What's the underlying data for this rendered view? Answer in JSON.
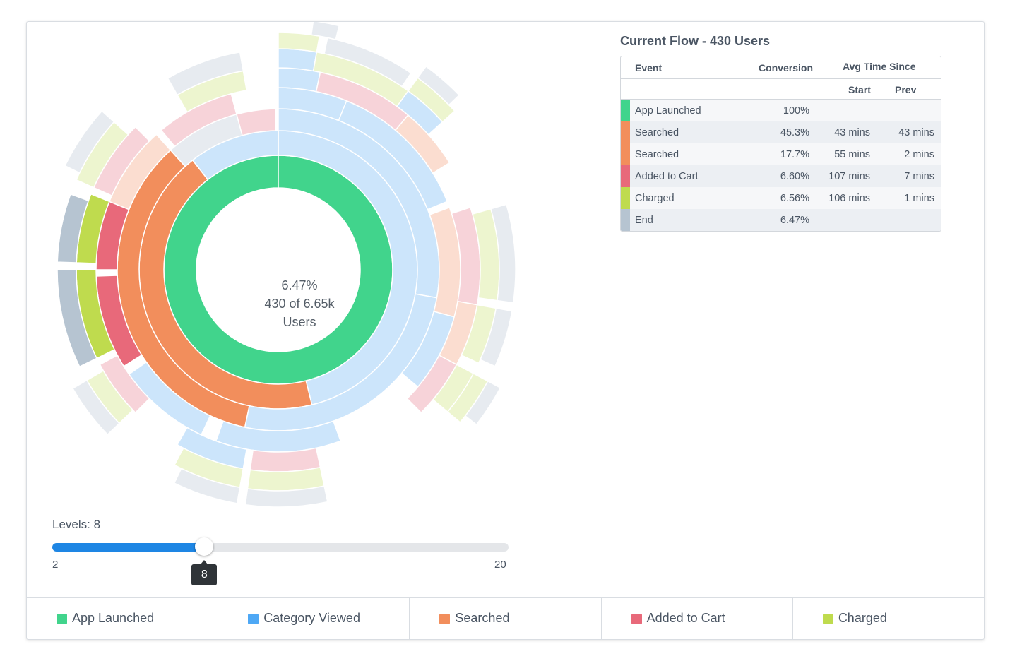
{
  "center": {
    "percent": "6.47%",
    "count_line": "430 of 6.65k",
    "unit": "Users"
  },
  "flow": {
    "title": "Current Flow - 430 Users",
    "headers": {
      "event": "Event",
      "conversion": "Conversion",
      "avg_time_since": "Avg Time Since",
      "start": "Start",
      "prev": "Prev"
    },
    "rows": [
      {
        "event": "App Launched",
        "conversion": "100%",
        "start": "",
        "prev": "",
        "color": "#41d48c"
      },
      {
        "event": "Searched",
        "conversion": "45.3%",
        "start": "43 mins",
        "prev": "43 mins",
        "color": "#f28e5c"
      },
      {
        "event": "Searched",
        "conversion": "17.7%",
        "start": "55 mins",
        "prev": "2 mins",
        "color": "#f28e5c"
      },
      {
        "event": "Added to Cart",
        "conversion": "6.60%",
        "start": "107 mins",
        "prev": "7 mins",
        "color": "#e8697a"
      },
      {
        "event": "Charged",
        "conversion": "6.56%",
        "start": "106 mins",
        "prev": "1 mins",
        "color": "#bfdb4e"
      },
      {
        "event": "End",
        "conversion": "6.47%",
        "start": "",
        "prev": "",
        "color": "#b6c4d1"
      }
    ]
  },
  "slider": {
    "label": "Levels: 8",
    "min": "2",
    "max": "20",
    "value": "8",
    "min_value": 2,
    "max_value": 20,
    "current_value": 8
  },
  "legend": [
    {
      "label": "App Launched",
      "color": "#41d48c"
    },
    {
      "label": "Category Viewed",
      "color": "#4ea8f5"
    },
    {
      "label": "Searched",
      "color": "#f28e5c"
    },
    {
      "label": "Added to Cart",
      "color": "#e8697a"
    },
    {
      "label": "Charged",
      "color": "#bfdb4e"
    }
  ],
  "colors": {
    "app_launched": "#41d48c",
    "category_viewed": "#cce5fb",
    "category_viewed_dark": "#4ea8f5",
    "searched": "#f28e5c",
    "searched_light": "#fbddd0",
    "added_to_cart": "#e8697a",
    "added_to_cart_light": "#f7d3d9",
    "charged": "#bfdb4e",
    "charged_light": "#edf5cf",
    "end": "#b6c4d1",
    "end_light": "#e7ebf0"
  }
}
